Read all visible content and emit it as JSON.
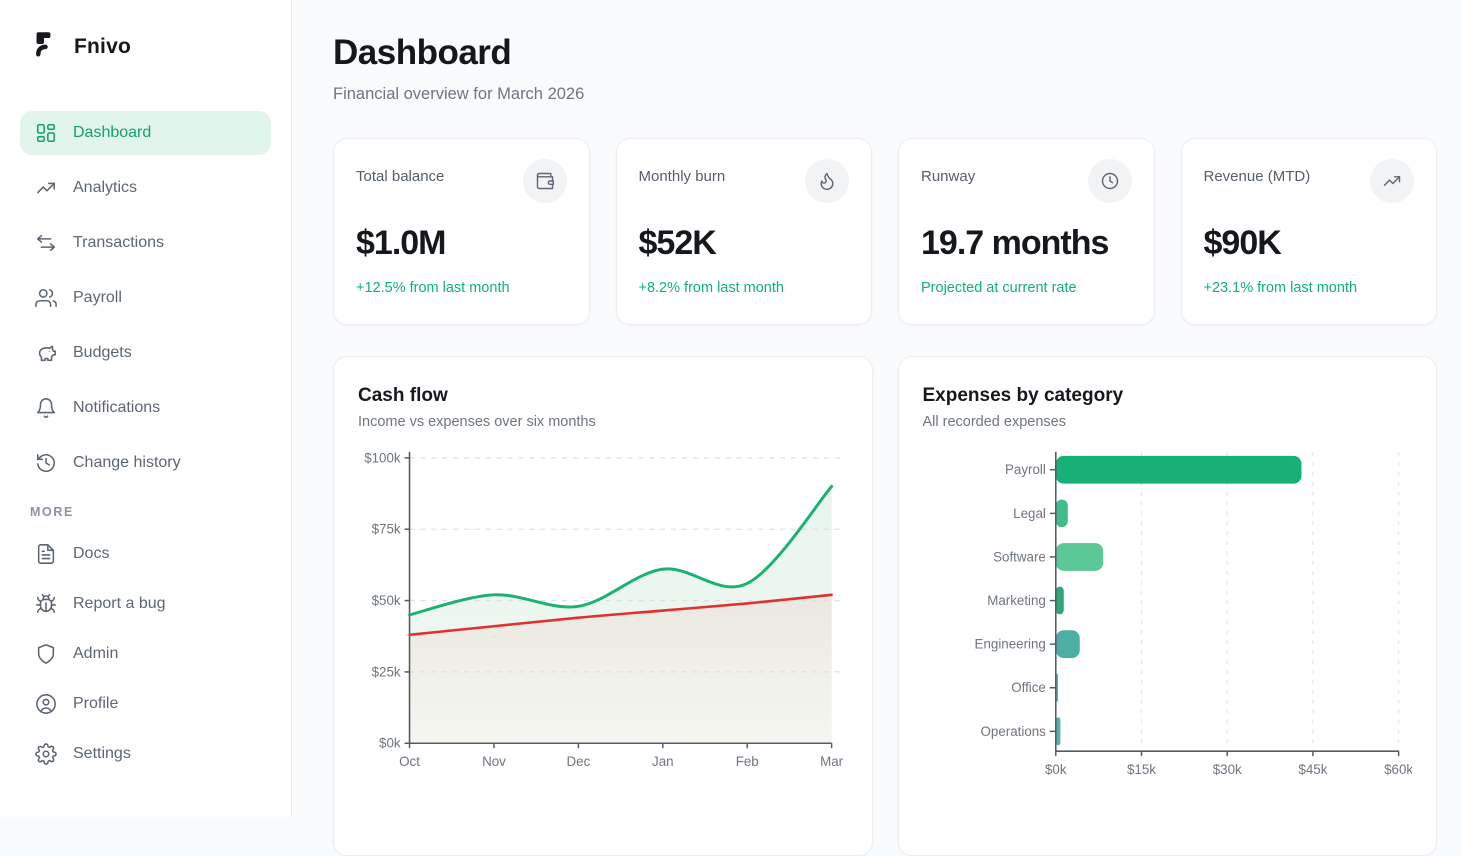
{
  "sidebar": {
    "brand": "Fnivo",
    "items": [
      {
        "label": "Dashboard",
        "icon": "dashboard-grid-icon",
        "active": true
      },
      {
        "label": "Analytics",
        "icon": "analytics-icon",
        "active": false
      },
      {
        "label": "Transactions",
        "icon": "transactions-icon",
        "active": false
      },
      {
        "label": "Payroll",
        "icon": "payroll-icon",
        "active": false
      },
      {
        "label": "Budgets",
        "icon": "piggy-bank-icon",
        "active": false
      },
      {
        "label": "Notifications",
        "icon": "bell-icon",
        "active": false
      },
      {
        "label": "Change history",
        "icon": "history-icon",
        "active": false
      }
    ],
    "more_label": "MORE",
    "more_items": [
      {
        "label": "Docs",
        "icon": "file-text-icon",
        "active": false
      },
      {
        "label": "Report a bug",
        "icon": "bug-icon",
        "active": false
      },
      {
        "label": "Admin",
        "icon": "shield-icon",
        "active": false
      },
      {
        "label": "Profile",
        "icon": "user-circle-icon",
        "active": false
      },
      {
        "label": "Settings",
        "icon": "gear-icon",
        "active": false
      }
    ]
  },
  "header": {
    "title": "Dashboard",
    "subtitle": "Financial overview for March 2026"
  },
  "stats": [
    {
      "label": "Total balance",
      "value": "$1.0M",
      "delta": "+12.5% from last month",
      "icon": "wallet-icon"
    },
    {
      "label": "Monthly burn",
      "value": "$52K",
      "delta": "+8.2% from last month",
      "icon": "flame-icon"
    },
    {
      "label": "Runway",
      "value": "19.7 months",
      "delta": "Projected at current rate",
      "icon": "clock-icon"
    },
    {
      "label": "Revenue (MTD)",
      "value": "$90K",
      "delta": "+23.1% from last month",
      "icon": "trending-up-icon"
    }
  ],
  "colors": {
    "accent_green": "#13b07b",
    "active_bg": "#e1f5eb",
    "active_text": "#169d71",
    "income_line": "#1bb271",
    "income_fill": "#e6f4ec",
    "expense_line": "#e03131",
    "expense_fill": "#eae8e0",
    "grid": "#dcdfe4",
    "axis": "#555b66"
  },
  "chart_data": [
    {
      "id": "cash_flow",
      "type": "line",
      "title": "Cash flow",
      "subtitle": "Income vs expenses over six months",
      "x": [
        "Oct",
        "Nov",
        "Dec",
        "Jan",
        "Feb",
        "Mar"
      ],
      "series": [
        {
          "name": "income",
          "color": "#1bb271",
          "values": [
            45,
            52,
            48,
            61,
            56,
            90
          ]
        },
        {
          "name": "expenses",
          "color": "#e03131",
          "values": [
            38,
            41,
            44,
            46.5,
            49,
            52
          ]
        }
      ],
      "ylim": [
        0,
        100
      ],
      "ytick_values": [
        0,
        25,
        50,
        75,
        100
      ],
      "ytick_labels": [
        "$0k",
        "$25k",
        "$50k",
        "$75k",
        "$100k"
      ],
      "grid": "dashed-horizontal",
      "legend": "none"
    },
    {
      "id": "expenses_by_category",
      "type": "bar",
      "title": "Expenses by category",
      "subtitle": "All recorded expenses",
      "categories": [
        "Payroll",
        "Legal",
        "Software",
        "Marketing",
        "Engineering",
        "Office",
        "Operations"
      ],
      "values": [
        43,
        2.1,
        8.3,
        1.4,
        4.2,
        0.4,
        0.8
      ],
      "bar_colors": [
        "#17b077",
        "#41bd8a",
        "#5cc898",
        "#2ca877",
        "#4bafa3",
        "#55b7af",
        "#4fb2a9"
      ],
      "xlim": [
        0,
        60
      ],
      "xtick_values": [
        0,
        15,
        30,
        45,
        60
      ],
      "xtick_labels": [
        "$0k",
        "$15k",
        "$30k",
        "$45k",
        "$60k"
      ],
      "grid": "dashed-vertical",
      "legend": "none"
    }
  ]
}
